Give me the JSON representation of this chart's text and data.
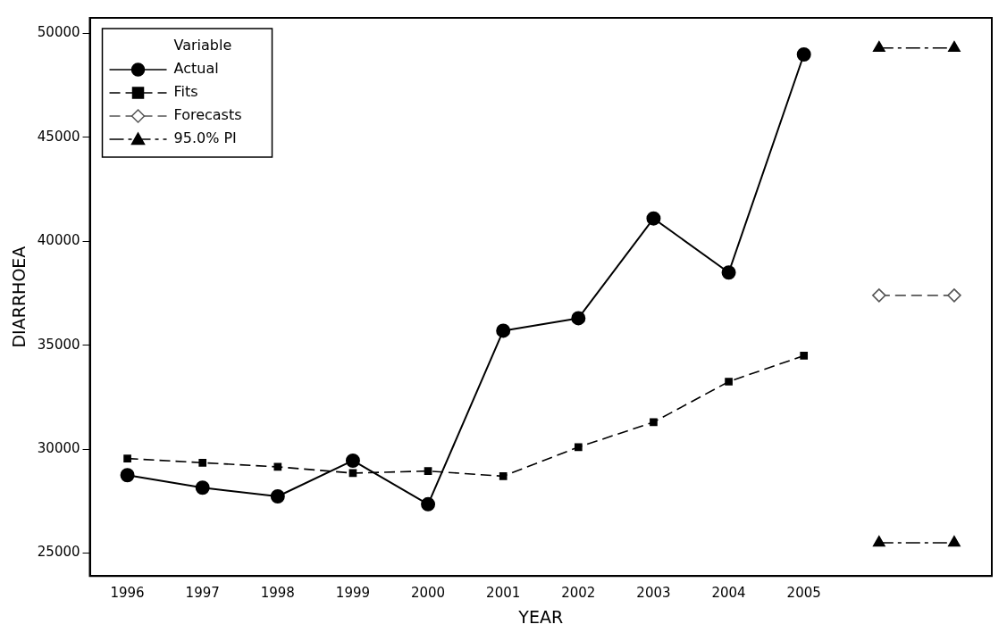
{
  "chart_data": {
    "type": "line",
    "xlabel": "YEAR",
    "ylabel": "DIARRHOEA",
    "legend_title": "Variable",
    "legend": "top left",
    "grid": false,
    "categories": [
      "1996",
      "1997",
      "1998",
      "1999",
      "2000",
      "2001",
      "2002",
      "2003",
      "2004",
      "2005",
      null,
      null
    ],
    "ylim": [
      23900,
      50750
    ],
    "yticks": [
      25000,
      30000,
      35000,
      40000,
      45000,
      50000
    ],
    "series": [
      {
        "name": "Actual",
        "color": "#000000",
        "marker": "circle",
        "line_style": "solid",
        "values": [
          28750,
          28150,
          27730,
          29450,
          27350,
          35700,
          36300,
          41100,
          38500,
          48990,
          null,
          null
        ]
      },
      {
        "name": "Fits",
        "color": "#000000",
        "marker": "square",
        "line_style": "dashed",
        "values": [
          29550,
          29350,
          29150,
          28850,
          28950,
          28700,
          30100,
          31300,
          33250,
          34500,
          null,
          null
        ]
      },
      {
        "name": "Forecasts",
        "color": "#555555",
        "marker": "diamond",
        "line_style": "dashed",
        "values": [
          null,
          null,
          null,
          null,
          null,
          null,
          null,
          null,
          null,
          null,
          37400,
          37400
        ]
      },
      {
        "name": "95.0% PI",
        "color": "#000000",
        "marker": "triangle",
        "line_style": "dashdot",
        "values": [
          null,
          null,
          null,
          null,
          null,
          null,
          null,
          null,
          null,
          null,
          49300,
          49300
        ]
      },
      {
        "color": "#000000",
        "marker": "triangle",
        "line_style": "dashdot",
        "values": [
          null,
          null,
          null,
          null,
          null,
          null,
          null,
          null,
          null,
          null,
          25500,
          25500
        ]
      }
    ]
  }
}
